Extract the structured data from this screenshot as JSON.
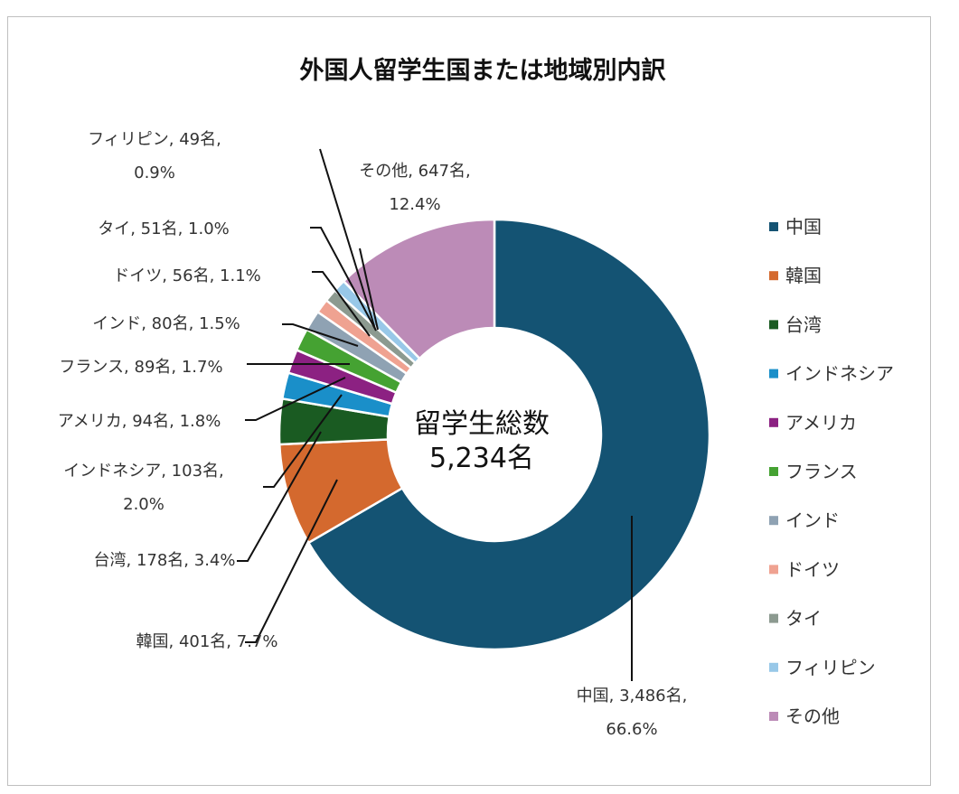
{
  "chart_data": {
    "type": "donut",
    "title": "外国人留学生国または地域別内訳",
    "center_label": [
      "留学生総数",
      "5,234名"
    ],
    "unit": "名",
    "total": 5234,
    "slices": [
      {
        "name": "中国",
        "value": 3486,
        "percent": "66.6%",
        "color": "#145373",
        "label_lines": [
          "中国, 3,486名,",
          "66.6%"
        ]
      },
      {
        "name": "韓国",
        "value": 401,
        "percent": "7.7%",
        "color": "#d4692e",
        "label_lines": [
          "韓国, 401名, 7.7%"
        ]
      },
      {
        "name": "台湾",
        "value": 178,
        "percent": "3.4%",
        "color": "#1a5b22",
        "label_lines": [
          "台湾, 178名, 3.4%"
        ]
      },
      {
        "name": "インドネシア",
        "value": 103,
        "percent": "2.0%",
        "color": "#1a8fc9",
        "label_lines": [
          "インドネシア, 103名,",
          "2.0%"
        ]
      },
      {
        "name": "アメリカ",
        "value": 94,
        "percent": "1.8%",
        "color": "#8c2182",
        "label_lines": [
          "アメリカ, 94名, 1.8%"
        ]
      },
      {
        "name": "フランス",
        "value": 89,
        "percent": "1.7%",
        "color": "#45a232",
        "label_lines": [
          "フランス, 89名, 1.7%"
        ]
      },
      {
        "name": "インド",
        "value": 80,
        "percent": "1.5%",
        "color": "#8fa2b3",
        "label_lines": [
          "インド, 80名, 1.5%"
        ]
      },
      {
        "name": "ドイツ",
        "value": 56,
        "percent": "1.1%",
        "color": "#efa291",
        "label_lines": [
          "ドイツ, 56名, 1.1%"
        ]
      },
      {
        "name": "タイ",
        "value": 51,
        "percent": "1.0%",
        "color": "#8c9a90",
        "label_lines": [
          "タイ, 51名, 1.0%"
        ]
      },
      {
        "name": "フィリピン",
        "value": 49,
        "percent": "0.9%",
        "color": "#98c8e8",
        "label_lines": [
          "フィリピン, 49名,",
          "0.9%"
        ]
      },
      {
        "name": "その他",
        "value": 647,
        "percent": "12.4%",
        "color": "#bc8bb7",
        "label_lines": [
          "その他, 647名,",
          "12.4%"
        ]
      }
    ],
    "legend_position": "right"
  }
}
